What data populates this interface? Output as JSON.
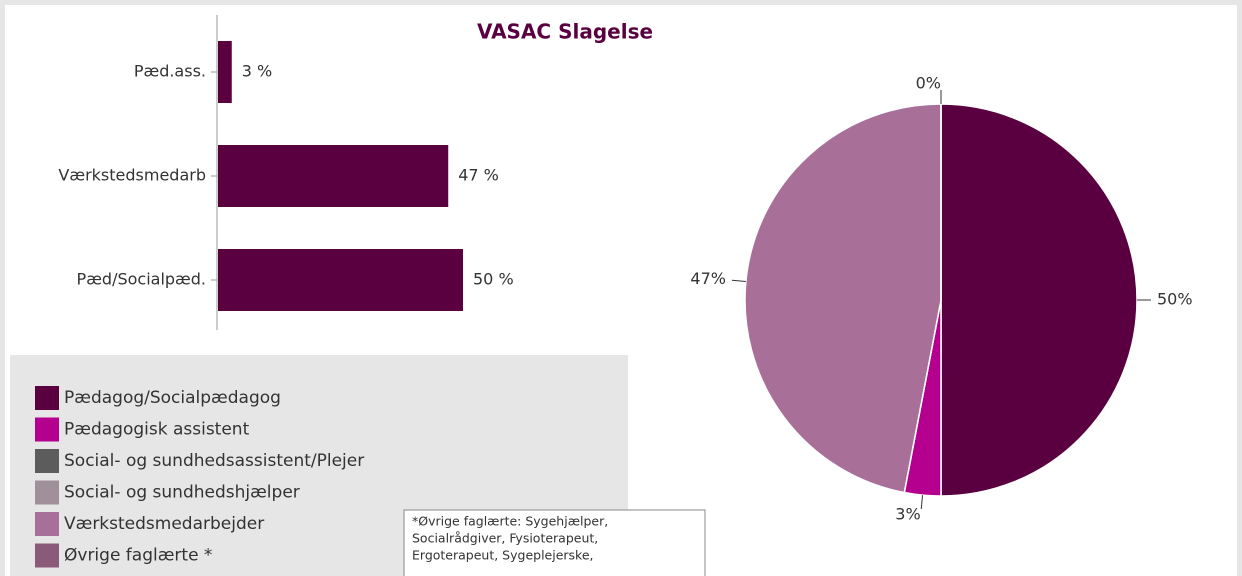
{
  "chart_data": [
    {
      "type": "bar",
      "title": "VASAC Slagelse",
      "orientation": "horizontal",
      "categories": [
        "Pæd.ass.",
        "Værkstedsmedarb",
        "Pæd/Socialpæd."
      ],
      "values": [
        3,
        47,
        50
      ],
      "value_labels": [
        "3 %",
        "47 %",
        "50 %"
      ],
      "color": "#5a0040",
      "xlim": [
        0,
        100
      ]
    },
    {
      "type": "pie",
      "categories": [
        "Pædagog/Socialpædagog",
        "Pædagogisk assistent",
        "Social- og sundhedsassistent/Plejer",
        "Social- og sundhedshjælper",
        "Værkstedsmedarbejder",
        "Øvrige faglærte *"
      ],
      "values": [
        50,
        3,
        0,
        0,
        47,
        0
      ],
      "value_labels": [
        "50%",
        "3%",
        null,
        null,
        "47%",
        "0%"
      ],
      "colors": [
        "#5a0040",
        "#b5008f",
        "#5c5c5c",
        "#a0909a",
        "#a87099",
        "#8a5a78"
      ],
      "legend": "bottom-left"
    }
  ],
  "footnote": [
    "*Øvrige faglærte: Sygehjælper,",
    "Socialrådgiver, Fysioterapeut,",
    "Ergoterapeut, Sygeplejerske,"
  ]
}
